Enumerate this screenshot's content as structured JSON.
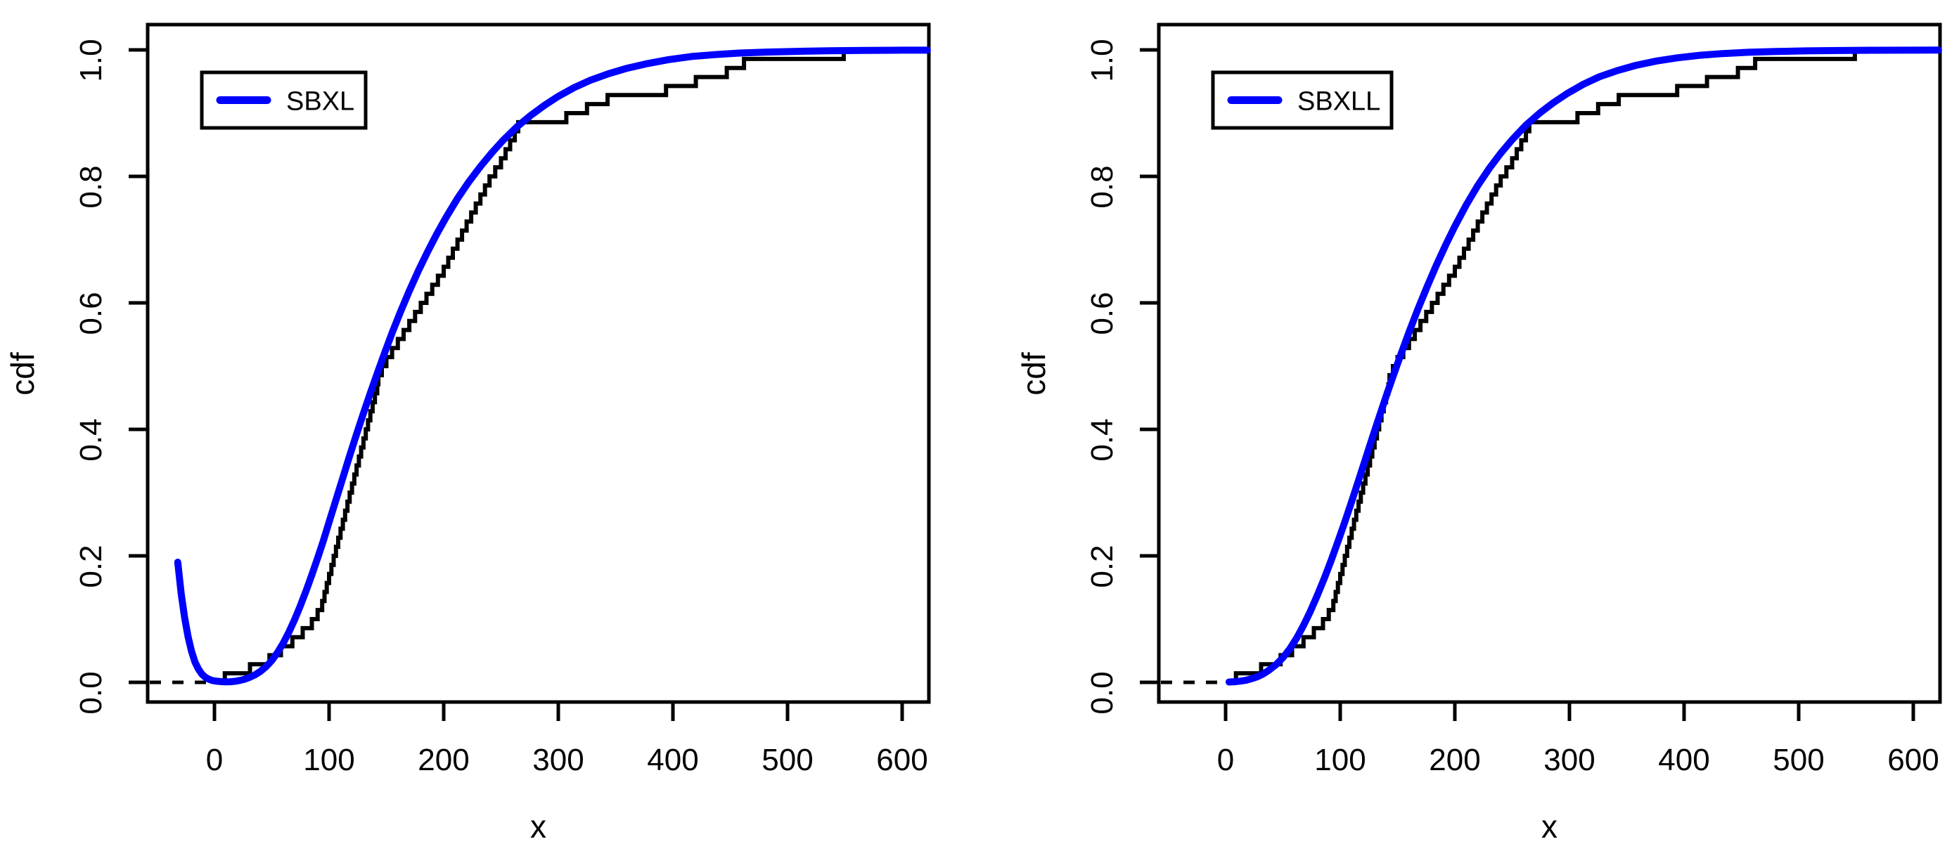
{
  "figure": {
    "background": "#FFFFFF",
    "description": "Two side-by-side ecdf plots with fitted distribution curves"
  },
  "chart_data": {
    "type": "line",
    "subtype": "ecdf-step-with-fitted-cdf-curve",
    "shared": {
      "xlabel": "x",
      "ylabel": "cdf",
      "x_ticks": [
        0,
        100,
        200,
        300,
        400,
        500,
        600
      ],
      "x_tick_labels": [
        "0",
        "100",
        "200",
        "300",
        "400",
        "500",
        "600"
      ],
      "y_ticks": [
        0.0,
        0.2,
        0.4,
        0.6,
        0.8,
        1.0
      ],
      "y_tick_labels": [
        "0.0",
        "0.2",
        "0.4",
        "0.6",
        "0.8",
        "1.0"
      ],
      "xlim": [
        -59,
        623
      ],
      "ylim": [
        0,
        1
      ],
      "grid": false,
      "legend_position": "top-left",
      "colors": {
        "ecdf": "#000000",
        "curve": "#0000FF",
        "axis": "#000000"
      },
      "ecdf_sample": [
        9,
        31,
        48,
        58,
        68,
        77,
        85,
        90,
        94,
        96,
        98,
        100,
        102,
        104,
        106,
        108,
        110,
        112,
        114,
        116,
        118,
        120,
        122,
        124,
        126,
        128,
        130,
        132,
        134,
        136,
        138,
        140,
        142,
        143,
        146,
        150,
        155,
        160,
        165,
        170,
        175,
        180,
        185,
        190,
        195,
        200,
        204,
        208,
        212,
        216,
        220,
        224,
        228,
        232,
        236,
        240,
        245,
        250,
        254,
        258,
        262,
        265,
        307,
        325,
        343,
        394,
        420,
        447,
        462,
        549
      ],
      "ecdf_solid_end_x": 600
    },
    "panels": [
      {
        "id": "left",
        "legend_label": "SBXL",
        "curve_points": [
          [
            -32,
            0.19
          ],
          [
            -29,
            0.14
          ],
          [
            -26,
            0.102
          ],
          [
            -23,
            0.072
          ],
          [
            -20,
            0.049
          ],
          [
            -17,
            0.032
          ],
          [
            -14,
            0.021
          ],
          [
            -11,
            0.013
          ],
          [
            -8,
            0.008
          ],
          [
            -5,
            0.005
          ],
          [
            -2,
            0.003
          ],
          [
            2,
            0.0018
          ],
          [
            6,
            0.0011
          ],
          [
            10,
            0.0008
          ],
          [
            14,
            0.001
          ],
          [
            18,
            0.0017
          ],
          [
            22,
            0.003
          ],
          [
            26,
            0.0048
          ],
          [
            30,
            0.0073
          ],
          [
            35,
            0.0115
          ],
          [
            40,
            0.0172
          ],
          [
            45,
            0.0248
          ],
          [
            50,
            0.0345
          ],
          [
            55,
            0.047
          ],
          [
            60,
            0.062
          ],
          [
            65,
            0.0795
          ],
          [
            70,
            0.0995
          ],
          [
            75,
            0.1215
          ],
          [
            80,
            0.145
          ],
          [
            85,
            0.17
          ],
          [
            90,
            0.1965
          ],
          [
            95,
            0.224
          ],
          [
            100,
            0.2535
          ],
          [
            106,
            0.2885
          ],
          [
            112,
            0.3235
          ],
          [
            118,
            0.3585
          ],
          [
            124,
            0.3925
          ],
          [
            130,
            0.4255
          ],
          [
            136,
            0.4575
          ],
          [
            142,
            0.4885
          ],
          [
            148,
            0.5185
          ],
          [
            155,
            0.5525
          ],
          [
            162,
            0.5845
          ],
          [
            170,
            0.619
          ],
          [
            178,
            0.651
          ],
          [
            186,
            0.681
          ],
          [
            194,
            0.709
          ],
          [
            202,
            0.735
          ],
          [
            212,
            0.765
          ],
          [
            222,
            0.7915
          ],
          [
            232,
            0.8155
          ],
          [
            242,
            0.8375
          ],
          [
            252,
            0.8575
          ],
          [
            264,
            0.8785
          ],
          [
            276,
            0.8965
          ],
          [
            288,
            0.9125
          ],
          [
            300,
            0.9265
          ],
          [
            314,
            0.9405
          ],
          [
            328,
            0.952
          ],
          [
            344,
            0.9625
          ],
          [
            360,
            0.971
          ],
          [
            378,
            0.9785
          ],
          [
            396,
            0.9845
          ],
          [
            416,
            0.9895
          ],
          [
            436,
            0.9925
          ],
          [
            458,
            0.995
          ],
          [
            482,
            0.9965
          ],
          [
            508,
            0.9977
          ],
          [
            536,
            0.9986
          ],
          [
            566,
            0.9991
          ],
          [
            600,
            0.9995
          ],
          [
            622,
            0.9996
          ]
        ]
      },
      {
        "id": "right",
        "legend_label": "SBXLL",
        "curve_points": [
          [
            3,
            0.0005
          ],
          [
            8,
            0.001
          ],
          [
            13,
            0.002
          ],
          [
            18,
            0.0035
          ],
          [
            23,
            0.006
          ],
          [
            28,
            0.009
          ],
          [
            33,
            0.0135
          ],
          [
            38,
            0.0195
          ],
          [
            44,
            0.028
          ],
          [
            50,
            0.039
          ],
          [
            56,
            0.053
          ],
          [
            62,
            0.07
          ],
          [
            68,
            0.09
          ],
          [
            74,
            0.1125
          ],
          [
            80,
            0.1375
          ],
          [
            86,
            0.164
          ],
          [
            92,
            0.1925
          ],
          [
            98,
            0.2225
          ],
          [
            104,
            0.2535
          ],
          [
            110,
            0.286
          ],
          [
            116,
            0.3195
          ],
          [
            122,
            0.353
          ],
          [
            128,
            0.3865
          ],
          [
            134,
            0.4195
          ],
          [
            140,
            0.452
          ],
          [
            146,
            0.4835
          ],
          [
            153,
            0.519
          ],
          [
            160,
            0.5535
          ],
          [
            168,
            0.591
          ],
          [
            176,
            0.6265
          ],
          [
            184,
            0.66
          ],
          [
            192,
            0.6915
          ],
          [
            200,
            0.721
          ],
          [
            210,
            0.755
          ],
          [
            220,
            0.7855
          ],
          [
            230,
            0.8125
          ],
          [
            240,
            0.8365
          ],
          [
            250,
            0.858
          ],
          [
            262,
            0.881
          ],
          [
            274,
            0.9
          ],
          [
            286,
            0.9165
          ],
          [
            298,
            0.931
          ],
          [
            312,
            0.9455
          ],
          [
            326,
            0.9575
          ],
          [
            342,
            0.9675
          ],
          [
            358,
            0.9755
          ],
          [
            376,
            0.9825
          ],
          [
            394,
            0.9875
          ],
          [
            414,
            0.9915
          ],
          [
            434,
            0.9942
          ],
          [
            456,
            0.9962
          ],
          [
            480,
            0.9975
          ],
          [
            506,
            0.9984
          ],
          [
            534,
            0.999
          ],
          [
            564,
            0.9994
          ],
          [
            600,
            0.9996
          ],
          [
            622,
            0.9997
          ]
        ]
      }
    ]
  }
}
